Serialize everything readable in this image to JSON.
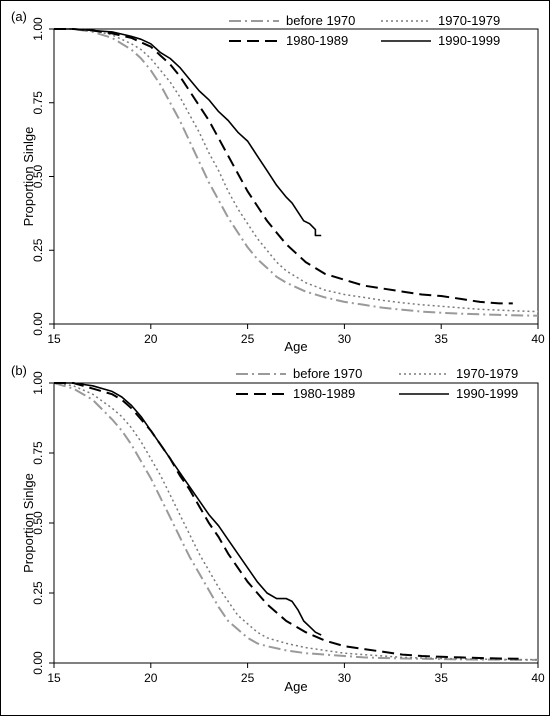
{
  "chart_data": [
    {
      "type": "line",
      "panel_label": "(a)",
      "xlabel": "Age",
      "ylabel": "Proportion Sinlge",
      "xlim": [
        15,
        40
      ],
      "ylim": [
        0,
        1
      ],
      "xticks": [
        "15",
        "20",
        "25",
        "30",
        "35",
        "40"
      ],
      "yticks": [
        "0.00",
        "0.25",
        "0.50",
        "0.75",
        "1.00"
      ],
      "legend_position": "top-right",
      "series": [
        {
          "name": "before 1970",
          "style": "dashdot",
          "color": "#9a9a9a",
          "width": 2,
          "x": [
            15,
            16,
            17,
            18,
            19,
            19.5,
            20,
            20.5,
            21,
            21.5,
            22,
            22.5,
            23,
            23.5,
            24,
            24.5,
            25,
            25.5,
            26,
            26.5,
            27,
            28,
            29,
            30,
            31,
            32,
            33,
            34,
            35,
            36,
            37,
            38,
            39,
            40
          ],
          "y": [
            1.0,
            1.0,
            0.99,
            0.97,
            0.93,
            0.9,
            0.86,
            0.81,
            0.75,
            0.69,
            0.62,
            0.55,
            0.48,
            0.42,
            0.36,
            0.31,
            0.26,
            0.22,
            0.19,
            0.16,
            0.14,
            0.11,
            0.09,
            0.075,
            0.065,
            0.055,
            0.048,
            0.042,
            0.038,
            0.035,
            0.033,
            0.031,
            0.029,
            0.028
          ]
        },
        {
          "name": "1970-1979",
          "style": "dotted",
          "color": "#7a7a7a",
          "width": 1.5,
          "x": [
            15,
            16,
            17,
            18,
            19,
            19.5,
            20,
            20.5,
            21,
            21.5,
            22,
            22.5,
            23,
            23.5,
            24,
            24.5,
            25,
            25.5,
            26,
            26.5,
            27,
            28,
            29,
            30,
            31,
            32,
            33,
            34,
            35,
            36,
            37,
            38,
            39,
            40
          ],
          "y": [
            1.0,
            1.0,
            0.995,
            0.98,
            0.95,
            0.93,
            0.9,
            0.86,
            0.82,
            0.77,
            0.71,
            0.65,
            0.58,
            0.52,
            0.45,
            0.39,
            0.34,
            0.29,
            0.25,
            0.21,
            0.18,
            0.14,
            0.115,
            0.1,
            0.09,
            0.08,
            0.072,
            0.065,
            0.06,
            0.055,
            0.05,
            0.047,
            0.044,
            0.042
          ]
        },
        {
          "name": "1980-1989",
          "style": "dashed",
          "color": "#000000",
          "width": 2,
          "x": [
            15,
            16,
            17,
            18,
            19,
            19.5,
            20,
            20.5,
            21,
            21.5,
            22,
            22.5,
            23,
            23.5,
            24,
            24.5,
            25,
            25.5,
            26,
            26.5,
            27,
            27.5,
            28,
            29,
            30,
            31,
            32,
            33,
            34,
            35,
            36,
            37,
            38,
            38.7
          ],
          "y": [
            1.0,
            1.0,
            0.995,
            0.985,
            0.97,
            0.955,
            0.94,
            0.91,
            0.88,
            0.84,
            0.79,
            0.74,
            0.69,
            0.63,
            0.57,
            0.51,
            0.45,
            0.4,
            0.35,
            0.31,
            0.27,
            0.24,
            0.21,
            0.17,
            0.15,
            0.13,
            0.12,
            0.11,
            0.1,
            0.095,
            0.085,
            0.075,
            0.07,
            0.07
          ]
        },
        {
          "name": "1990-1999",
          "style": "solid",
          "color": "#000000",
          "width": 1.6,
          "x": [
            15,
            16,
            17,
            18,
            19,
            19.5,
            20,
            20.5,
            21,
            21.5,
            22,
            22.5,
            23,
            23.5,
            24,
            24.5,
            25,
            25.5,
            26,
            26.5,
            27,
            27.3,
            27.6,
            27.9,
            28.2,
            28.5,
            28.5,
            28.8
          ],
          "y": [
            1.0,
            1.0,
            0.995,
            0.99,
            0.975,
            0.965,
            0.95,
            0.92,
            0.9,
            0.87,
            0.83,
            0.79,
            0.76,
            0.72,
            0.69,
            0.65,
            0.62,
            0.57,
            0.52,
            0.47,
            0.43,
            0.41,
            0.38,
            0.35,
            0.34,
            0.32,
            0.3,
            0.3
          ]
        }
      ]
    },
    {
      "type": "line",
      "panel_label": "(b)",
      "xlabel": "Age",
      "ylabel": "Proportion Sinlge",
      "xlim": [
        15,
        40
      ],
      "ylim": [
        0,
        1
      ],
      "xticks": [
        "15",
        "20",
        "25",
        "30",
        "35",
        "40"
      ],
      "yticks": [
        "0.00",
        "0.25",
        "0.50",
        "0.75",
        "1.00"
      ],
      "legend_position": "top-right",
      "series": [
        {
          "name": "before 1970",
          "style": "dashdot",
          "color": "#9a9a9a",
          "width": 2,
          "x": [
            15,
            16,
            17,
            18,
            18.5,
            19,
            19.5,
            20,
            20.5,
            21,
            21.5,
            22,
            22.5,
            23,
            23.5,
            24,
            24.5,
            25,
            25.5,
            26,
            27,
            28,
            29,
            30,
            31,
            32,
            33,
            34,
            35,
            36,
            37,
            38,
            39,
            40
          ],
          "y": [
            1.0,
            0.98,
            0.94,
            0.87,
            0.83,
            0.78,
            0.72,
            0.66,
            0.59,
            0.52,
            0.45,
            0.38,
            0.32,
            0.26,
            0.2,
            0.15,
            0.12,
            0.09,
            0.07,
            0.06,
            0.045,
            0.035,
            0.03,
            0.025,
            0.02,
            0.018,
            0.016,
            0.015,
            0.014,
            0.013,
            0.012,
            0.012,
            0.011,
            0.011
          ]
        },
        {
          "name": "1970-1979",
          "style": "dotted",
          "color": "#7a7a7a",
          "width": 1.5,
          "x": [
            15,
            16,
            17,
            18,
            18.5,
            19,
            19.5,
            20,
            20.5,
            21,
            21.5,
            22,
            22.5,
            23,
            23.5,
            24,
            24.5,
            25,
            25.5,
            26,
            27,
            28,
            29,
            30,
            31,
            32,
            33,
            34,
            35,
            36,
            37,
            38,
            39,
            40
          ],
          "y": [
            1.0,
            0.99,
            0.96,
            0.91,
            0.88,
            0.84,
            0.79,
            0.73,
            0.67,
            0.6,
            0.53,
            0.46,
            0.39,
            0.33,
            0.27,
            0.22,
            0.17,
            0.14,
            0.11,
            0.09,
            0.07,
            0.055,
            0.045,
            0.035,
            0.03,
            0.025,
            0.02,
            0.018,
            0.016,
            0.015,
            0.014,
            0.013,
            0.012,
            0.012
          ]
        },
        {
          "name": "1980-1989",
          "style": "dashed",
          "color": "#000000",
          "width": 2,
          "x": [
            15,
            16,
            17,
            18,
            18.5,
            19,
            19.5,
            20,
            20.5,
            21,
            21.5,
            22,
            22.5,
            23,
            23.5,
            24,
            24.5,
            25,
            25.5,
            26,
            27,
            27.5,
            28,
            29,
            30,
            31,
            32,
            33,
            34,
            35,
            36,
            37,
            38,
            39
          ],
          "y": [
            1.0,
            1.0,
            0.98,
            0.96,
            0.94,
            0.91,
            0.87,
            0.83,
            0.78,
            0.73,
            0.67,
            0.62,
            0.56,
            0.5,
            0.45,
            0.39,
            0.34,
            0.29,
            0.25,
            0.21,
            0.15,
            0.13,
            0.11,
            0.08,
            0.06,
            0.05,
            0.04,
            0.03,
            0.025,
            0.022,
            0.02,
            0.018,
            0.016,
            0.015
          ]
        },
        {
          "name": "1990-1999",
          "style": "solid",
          "color": "#000000",
          "width": 1.6,
          "x": [
            15,
            16,
            17,
            18,
            18.5,
            19,
            19.5,
            20,
            20.5,
            21,
            21.5,
            22,
            22.5,
            23,
            23.5,
            24,
            24.5,
            25,
            25.5,
            26,
            26.5,
            27,
            27.3,
            27.6,
            27.9,
            28.2,
            28.5,
            28.8
          ],
          "y": [
            1.0,
            1.0,
            0.99,
            0.97,
            0.95,
            0.92,
            0.88,
            0.83,
            0.78,
            0.73,
            0.68,
            0.63,
            0.58,
            0.53,
            0.49,
            0.44,
            0.39,
            0.34,
            0.29,
            0.25,
            0.23,
            0.23,
            0.22,
            0.19,
            0.15,
            0.13,
            0.11,
            0.1
          ]
        }
      ]
    }
  ]
}
